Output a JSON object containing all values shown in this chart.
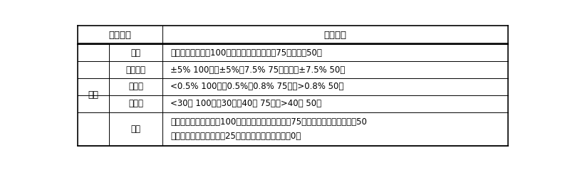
{
  "col1_header": "指标名称",
  "col2_header": "指标分值",
  "row_group": "片剂",
  "rows": [
    {
      "name": "外观",
      "value1": "白色、光洁、圆整100分；白色、光洁度稍差75分；麻面50分",
      "value2": ""
    },
    {
      "name": "重量差异",
      "value1": "±5% 100分；±5%～7.5% 75分；超过±7.5% 50分",
      "value2": ""
    },
    {
      "name": "脆碎度",
      "value1": "<0.5% 100分；0.5%～0.8% 75分；>0.8% 50分",
      "value2": ""
    },
    {
      "name": "休止角",
      "value1": "<30度 100分；30度～40度 75分；>40度 50分",
      "value2": ""
    },
    {
      "name": "口感",
      "value1": "几乎无苦味，咀嚼感强100分；略有苦味，有咀嚼感75分；苦味减弱，咀嚼感弱50",
      "value2": "分；有苦味，咀嚼感很弱25分；苦味较重，无明嚼感0分"
    }
  ],
  "bg_color": "#ffffff",
  "text_color": "#000000",
  "header_fontsize": 9.5,
  "cell_fontsize": 8.5,
  "group_fontsize": 9
}
